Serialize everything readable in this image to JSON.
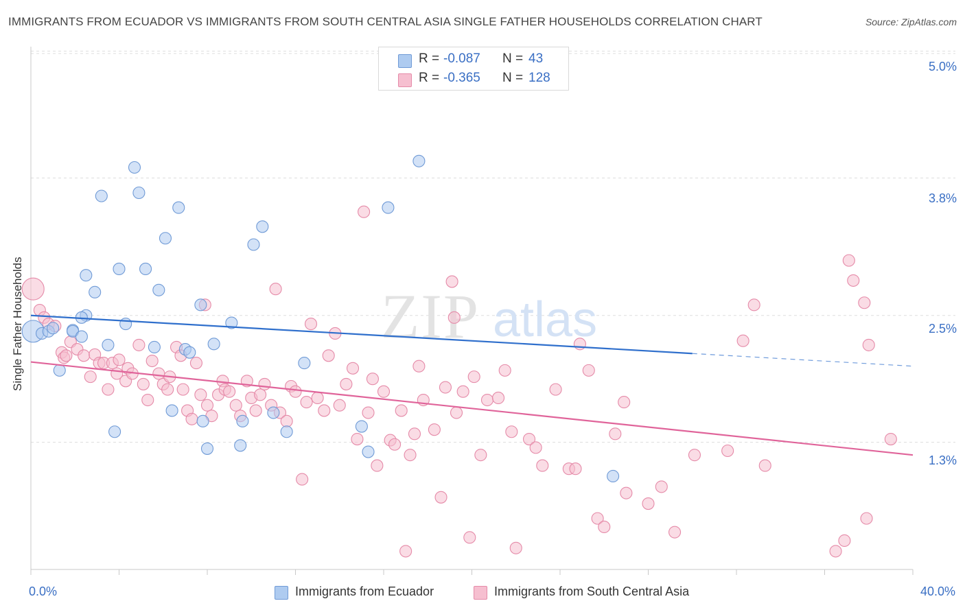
{
  "header": {
    "title": "IMMIGRANTS FROM ECUADOR VS IMMIGRANTS FROM SOUTH CENTRAL ASIA SINGLE FATHER HOUSEHOLDS CORRELATION CHART",
    "source": "Source: ZipAtlas.com"
  },
  "watermark": {
    "zip": "ZIP",
    "atlas": "atlas"
  },
  "legend": {
    "r_label": "R =",
    "n_label": "N =",
    "ecuador": {
      "r": "-0.087",
      "n": "43"
    },
    "sca": {
      "r": "-0.365",
      "n": "128"
    }
  },
  "colors": {
    "ecuador_fill": "#aecbf0",
    "ecuador_stroke": "#6f9ad6",
    "ecuador_line": "#2f6fcc",
    "sca_fill": "#f6bfd0",
    "sca_stroke": "#e58aa8",
    "sca_line": "#e0649a",
    "tick_text": "#3a6fc4",
    "grid": "#dddddd"
  },
  "chart_data": {
    "type": "scatter",
    "title": "IMMIGRANTS FROM ECUADOR VS IMMIGRANTS FROM SOUTH CENTRAL ASIA SINGLE FATHER HOUSEHOLDS CORRELATION CHART",
    "xlabel": "",
    "ylabel": "Single Father Households",
    "xlim": [
      0,
      40
    ],
    "ylim": [
      0,
      5.2
    ],
    "x_tick_labels": [
      "0.0%",
      "40.0%"
    ],
    "y_ticks": [
      1.3,
      2.5,
      3.8,
      5.0
    ],
    "y_tick_labels": [
      "1.3%",
      "2.5%",
      "3.8%",
      "5.0%"
    ],
    "grid": true,
    "legend_position": "top-center",
    "series": [
      {
        "name": "Immigrants from Ecuador",
        "r": -0.087,
        "n": 43,
        "trend": {
          "x": [
            0,
            30
          ],
          "y": [
            2.5,
            2.14
          ],
          "dashed_to": [
            40,
            2.02
          ]
        },
        "points": [
          [
            0.1,
            2.35,
            2
          ],
          [
            0.5,
            2.33,
            1
          ],
          [
            0.8,
            2.35,
            1
          ],
          [
            1.0,
            2.38,
            1
          ],
          [
            1.3,
            1.98,
            1
          ],
          [
            1.9,
            2.36,
            1
          ],
          [
            1.9,
            2.35,
            1
          ],
          [
            2.3,
            2.3,
            1
          ],
          [
            2.5,
            2.5,
            1
          ],
          [
            2.3,
            2.48,
            1
          ],
          [
            2.5,
            2.88,
            1
          ],
          [
            2.9,
            2.72,
            1
          ],
          [
            3.2,
            3.63,
            1
          ],
          [
            3.5,
            2.22,
            1
          ],
          [
            3.8,
            1.4,
            1
          ],
          [
            4.0,
            2.94,
            1
          ],
          [
            4.3,
            2.42,
            1
          ],
          [
            4.7,
            3.9,
            1
          ],
          [
            4.9,
            3.66,
            1
          ],
          [
            5.2,
            2.94,
            1
          ],
          [
            5.6,
            2.2,
            1
          ],
          [
            5.8,
            2.74,
            1
          ],
          [
            6.1,
            3.23,
            1
          ],
          [
            6.4,
            1.6,
            1
          ],
          [
            6.7,
            3.52,
            1
          ],
          [
            7.0,
            2.18,
            1
          ],
          [
            7.2,
            2.15,
            1
          ],
          [
            7.7,
            2.6,
            1
          ],
          [
            7.8,
            1.5,
            1
          ],
          [
            8.0,
            1.24,
            1
          ],
          [
            8.3,
            2.23,
            1
          ],
          [
            9.1,
            2.43,
            1
          ],
          [
            9.5,
            1.27,
            1
          ],
          [
            9.6,
            1.5,
            1
          ],
          [
            10.1,
            3.17,
            1
          ],
          [
            10.5,
            3.34,
            1
          ],
          [
            11.0,
            1.58,
            1
          ],
          [
            11.6,
            1.4,
            1
          ],
          [
            12.4,
            2.05,
            1
          ],
          [
            15.0,
            1.45,
            1
          ],
          [
            15.3,
            1.21,
            1
          ],
          [
            16.2,
            3.52,
            1
          ],
          [
            17.6,
            3.96,
            1
          ],
          [
            26.4,
            0.98,
            1
          ]
        ]
      },
      {
        "name": "Immigrants from South Central Asia",
        "r": -0.365,
        "n": 128,
        "trend": {
          "x": [
            0,
            40
          ],
          "y": [
            2.06,
            1.18
          ]
        },
        "points": [
          [
            0.1,
            2.75,
            2
          ],
          [
            0.4,
            2.55,
            1
          ],
          [
            0.6,
            2.48,
            1
          ],
          [
            0.8,
            2.42,
            1
          ],
          [
            1.1,
            2.4,
            1
          ],
          [
            1.4,
            2.15,
            1
          ],
          [
            1.5,
            2.1,
            1
          ],
          [
            1.6,
            2.12,
            1
          ],
          [
            1.8,
            2.25,
            1
          ],
          [
            2.1,
            2.18,
            1
          ],
          [
            2.4,
            2.12,
            1
          ],
          [
            2.7,
            1.92,
            1
          ],
          [
            2.9,
            2.13,
            1
          ],
          [
            3.1,
            2.05,
            1
          ],
          [
            3.3,
            2.05,
            1
          ],
          [
            3.5,
            1.8,
            1
          ],
          [
            3.7,
            2.05,
            1
          ],
          [
            3.9,
            1.95,
            1
          ],
          [
            4.0,
            2.08,
            1
          ],
          [
            4.3,
            1.88,
            1
          ],
          [
            4.4,
            2.0,
            1
          ],
          [
            4.6,
            1.95,
            1
          ],
          [
            4.9,
            2.22,
            1
          ],
          [
            5.1,
            1.85,
            1
          ],
          [
            5.3,
            1.7,
            1
          ],
          [
            5.5,
            2.07,
            1
          ],
          [
            5.8,
            1.95,
            1
          ],
          [
            6.0,
            1.85,
            1
          ],
          [
            6.2,
            1.8,
            1
          ],
          [
            6.3,
            1.92,
            1
          ],
          [
            6.6,
            2.2,
            1
          ],
          [
            6.8,
            2.12,
            1
          ],
          [
            6.9,
            1.8,
            1
          ],
          [
            7.1,
            1.6,
            1
          ],
          [
            7.3,
            1.52,
            1
          ],
          [
            7.5,
            2.05,
            1
          ],
          [
            7.7,
            1.75,
            1
          ],
          [
            7.9,
            2.6,
            1
          ],
          [
            8.0,
            1.65,
            1
          ],
          [
            8.2,
            1.55,
            1
          ],
          [
            8.5,
            1.75,
            1
          ],
          [
            8.7,
            1.88,
            1
          ],
          [
            8.8,
            1.8,
            1
          ],
          [
            9.0,
            1.78,
            1
          ],
          [
            9.3,
            1.65,
            1
          ],
          [
            9.5,
            1.55,
            1
          ],
          [
            9.8,
            1.88,
            1
          ],
          [
            10.0,
            1.72,
            1
          ],
          [
            10.2,
            1.6,
            1
          ],
          [
            10.4,
            1.75,
            1
          ],
          [
            10.6,
            1.85,
            1
          ],
          [
            10.9,
            1.65,
            1
          ],
          [
            11.1,
            2.75,
            1
          ],
          [
            11.3,
            1.58,
            1
          ],
          [
            11.6,
            1.5,
            1
          ],
          [
            11.8,
            1.83,
            1
          ],
          [
            12.0,
            1.78,
            1
          ],
          [
            12.3,
            0.95,
            1
          ],
          [
            12.5,
            1.68,
            1
          ],
          [
            12.7,
            2.42,
            1
          ],
          [
            13.0,
            1.72,
            1
          ],
          [
            13.3,
            1.6,
            1
          ],
          [
            13.5,
            2.12,
            1
          ],
          [
            13.8,
            2.33,
            1
          ],
          [
            14.0,
            1.65,
            1
          ],
          [
            14.3,
            1.85,
            1
          ],
          [
            14.6,
            2.0,
            1
          ],
          [
            14.8,
            1.33,
            1
          ],
          [
            15.1,
            3.48,
            1
          ],
          [
            15.3,
            1.58,
            1
          ],
          [
            15.5,
            1.9,
            1
          ],
          [
            15.7,
            1.08,
            1
          ],
          [
            16.0,
            1.78,
            1
          ],
          [
            16.3,
            1.32,
            1
          ],
          [
            16.5,
            1.28,
            1
          ],
          [
            16.8,
            1.6,
            1
          ],
          [
            17.0,
            0.27,
            1
          ],
          [
            17.2,
            1.18,
            1
          ],
          [
            17.4,
            1.38,
            1
          ],
          [
            17.6,
            2.02,
            1
          ],
          [
            17.8,
            1.7,
            1
          ],
          [
            18.3,
            1.42,
            1
          ],
          [
            18.6,
            0.78,
            1
          ],
          [
            18.8,
            1.82,
            1
          ],
          [
            19.1,
            2.82,
            1
          ],
          [
            19.2,
            2.48,
            1
          ],
          [
            19.3,
            1.58,
            1
          ],
          [
            19.6,
            1.78,
            1
          ],
          [
            19.9,
            0.4,
            1
          ],
          [
            20.1,
            1.92,
            1
          ],
          [
            20.4,
            1.18,
            1
          ],
          [
            20.7,
            1.7,
            1
          ],
          [
            21.2,
            1.72,
            1
          ],
          [
            21.5,
            1.98,
            1
          ],
          [
            21.8,
            1.4,
            1
          ],
          [
            22.0,
            0.3,
            1
          ],
          [
            22.6,
            1.33,
            1
          ],
          [
            22.9,
            1.25,
            1
          ],
          [
            23.2,
            1.08,
            1
          ],
          [
            23.8,
            1.8,
            1
          ],
          [
            24.4,
            1.05,
            1
          ],
          [
            24.7,
            1.05,
            1
          ],
          [
            24.9,
            2.23,
            1
          ],
          [
            25.3,
            1.98,
            1
          ],
          [
            25.7,
            0.58,
            1
          ],
          [
            26.0,
            0.5,
            1
          ],
          [
            26.5,
            1.38,
            1
          ],
          [
            26.9,
            1.68,
            1
          ],
          [
            27.0,
            0.82,
            1
          ],
          [
            28.0,
            0.72,
            1
          ],
          [
            28.6,
            0.88,
            1
          ],
          [
            29.2,
            0.45,
            1
          ],
          [
            30.1,
            1.18,
            1
          ],
          [
            31.6,
            1.22,
            1
          ],
          [
            32.3,
            2.26,
            1
          ],
          [
            32.8,
            2.6,
            1
          ],
          [
            33.3,
            1.08,
            1
          ],
          [
            36.5,
            0.27,
            1
          ],
          [
            36.9,
            0.37,
            1
          ],
          [
            37.1,
            3.02,
            1
          ],
          [
            37.3,
            2.83,
            1
          ],
          [
            37.8,
            2.62,
            1
          ],
          [
            37.9,
            0.58,
            1
          ],
          [
            38.0,
            2.22,
            1
          ],
          [
            39.0,
            1.33,
            1
          ]
        ]
      }
    ]
  },
  "axis": {
    "y_label": "Single Father Households",
    "x_min_label": "0.0%",
    "x_max_label": "40.0%",
    "y_labels": [
      "5.0%",
      "3.8%",
      "2.5%",
      "1.3%"
    ]
  },
  "bottom_legend": {
    "ecuador": "Immigrants from Ecuador",
    "sca": "Immigrants from South Central Asia"
  }
}
